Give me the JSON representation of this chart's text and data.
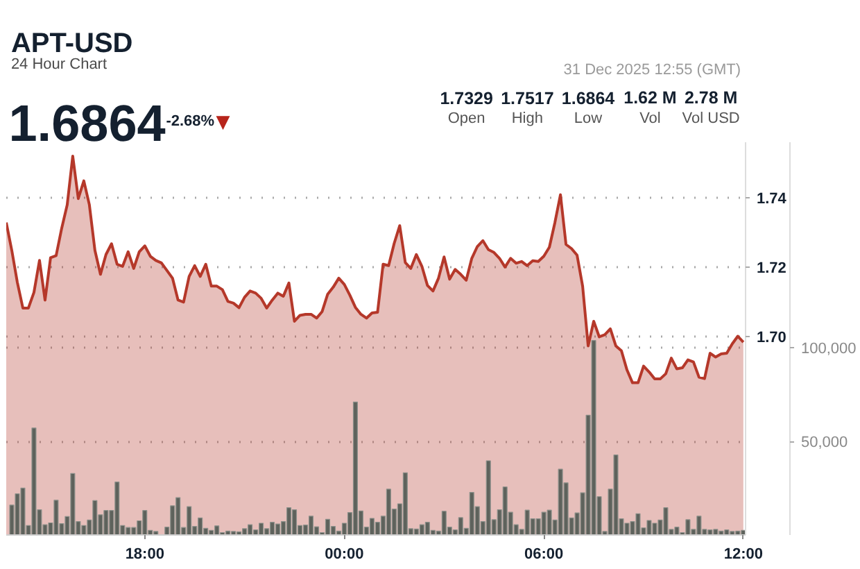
{
  "chart_data": {
    "type": "area",
    "title": "APT-USD",
    "subtitle": "24 Hour Chart",
    "annotations": [
      "1.6864",
      "-2.68%",
      "▼",
      "31 Dec 2025 12:55 (GMT)",
      "1.7329",
      "Open",
      "1.7517",
      "High",
      "1.6864",
      "Low",
      "1.62 M",
      "Vol",
      "2.78 M",
      "Vol USD"
    ],
    "x": [
      "2025-12-30T13:50",
      "2025-12-30T14:00",
      "2025-12-30T14:10",
      "2025-12-30T14:20",
      "2025-12-30T14:30",
      "2025-12-30T14:40",
      "2025-12-30T14:50",
      "2025-12-30T15:00",
      "2025-12-30T15:10",
      "2025-12-30T15:20",
      "2025-12-30T15:30",
      "2025-12-30T15:40",
      "2025-12-30T15:50",
      "2025-12-30T16:00",
      "2025-12-30T16:10",
      "2025-12-30T16:20",
      "2025-12-30T16:30",
      "2025-12-30T16:40",
      "2025-12-30T16:50",
      "2025-12-30T17:00",
      "2025-12-30T17:10",
      "2025-12-30T17:20",
      "2025-12-30T17:30",
      "2025-12-30T17:40",
      "2025-12-30T17:50",
      "2025-12-30T18:00",
      "2025-12-30T18:10",
      "2025-12-30T18:20",
      "2025-12-30T18:30",
      "2025-12-30T18:40",
      "2025-12-30T18:50",
      "2025-12-30T19:00",
      "2025-12-30T19:10",
      "2025-12-30T19:20",
      "2025-12-30T19:30",
      "2025-12-30T19:40",
      "2025-12-30T19:50",
      "2025-12-30T20:00",
      "2025-12-30T20:10",
      "2025-12-30T20:20",
      "2025-12-30T20:30",
      "2025-12-30T20:40",
      "2025-12-30T20:50",
      "2025-12-30T21:00",
      "2025-12-30T21:10",
      "2025-12-30T21:20",
      "2025-12-30T21:30",
      "2025-12-30T21:40",
      "2025-12-30T21:50",
      "2025-12-30T22:00",
      "2025-12-30T22:10",
      "2025-12-30T22:20",
      "2025-12-30T22:30",
      "2025-12-30T22:40",
      "2025-12-30T22:50",
      "2025-12-30T23:00",
      "2025-12-30T23:10",
      "2025-12-30T23:20",
      "2025-12-30T23:30",
      "2025-12-30T23:40",
      "2025-12-30T23:50",
      "2025-12-31T00:00",
      "2025-12-31T00:10",
      "2025-12-31T00:20",
      "2025-12-31T00:30",
      "2025-12-31T00:40",
      "2025-12-31T00:50",
      "2025-12-31T01:00",
      "2025-12-31T01:10",
      "2025-12-31T01:20",
      "2025-12-31T01:30",
      "2025-12-31T01:40",
      "2025-12-31T01:50",
      "2025-12-31T02:00",
      "2025-12-31T02:10",
      "2025-12-31T02:20",
      "2025-12-31T02:30",
      "2025-12-31T02:40",
      "2025-12-31T02:50",
      "2025-12-31T03:00",
      "2025-12-31T03:10",
      "2025-12-31T03:20",
      "2025-12-31T03:30",
      "2025-12-31T03:40",
      "2025-12-31T03:50",
      "2025-12-31T04:00",
      "2025-12-31T04:10",
      "2025-12-31T04:20",
      "2025-12-31T04:30",
      "2025-12-31T04:40",
      "2025-12-31T04:50",
      "2025-12-31T05:00",
      "2025-12-31T05:10",
      "2025-12-31T05:20",
      "2025-12-31T05:30",
      "2025-12-31T05:40",
      "2025-12-31T05:50",
      "2025-12-31T06:00",
      "2025-12-31T06:10",
      "2025-12-31T06:20",
      "2025-12-31T06:30",
      "2025-12-31T06:40",
      "2025-12-31T06:50",
      "2025-12-31T07:00",
      "2025-12-31T07:10",
      "2025-12-31T07:20",
      "2025-12-31T07:30",
      "2025-12-31T07:40",
      "2025-12-31T07:50",
      "2025-12-31T08:00",
      "2025-12-31T08:10",
      "2025-12-31T08:20",
      "2025-12-31T08:30",
      "2025-12-31T08:40",
      "2025-12-31T08:50",
      "2025-12-31T09:00",
      "2025-12-31T09:10",
      "2025-12-31T09:20",
      "2025-12-31T09:30",
      "2025-12-31T09:40",
      "2025-12-31T09:50",
      "2025-12-31T10:00",
      "2025-12-31T10:10",
      "2025-12-31T10:20",
      "2025-12-31T10:30",
      "2025-12-31T10:40",
      "2025-12-31T10:50",
      "2025-12-31T11:00",
      "2025-12-31T11:10",
      "2025-12-31T11:20",
      "2025-12-31T11:30",
      "2025-12-31T11:40",
      "2025-12-31T11:50",
      "2025-12-31T12:00"
    ],
    "xlim": [
      "2025-12-30T13:50",
      "2025-12-31T12:04"
    ],
    "xticks": [
      {
        "value": "2025-12-30T18:00",
        "label": "18:00"
      },
      {
        "value": "2025-12-31T00:00",
        "label": "00:00"
      },
      {
        "value": "2025-12-31T06:00",
        "label": "06:00"
      },
      {
        "value": "2025-12-31T12:00",
        "label": "12:00"
      }
    ],
    "ylim": [
      1.643,
      1.756
    ],
    "yticks": [
      {
        "value": 1.7,
        "label": "1.70"
      },
      1.72,
      1.74
    ],
    "y2lim": [
      0,
      210000
    ],
    "y2ticks": [
      {
        "value": 50000,
        "label": "50,000"
      },
      {
        "value": 100000,
        "label": "100,000"
      }
    ],
    "grid": "y",
    "series": [
      {
        "color": "#b5382a",
        "values": [
          1.7329,
          1.7249,
          1.7157,
          1.7083,
          1.7083,
          1.7128,
          1.722,
          1.7106,
          1.7228,
          1.7234,
          1.7312,
          1.738,
          1.752,
          1.7398,
          1.7449,
          1.738,
          1.7249,
          1.718,
          1.7237,
          1.7268,
          1.7209,
          1.7203,
          1.7245,
          1.7197,
          1.7245,
          1.7262,
          1.7232,
          1.722,
          1.7213,
          1.7191,
          1.7169,
          1.7106,
          1.71,
          1.7174,
          1.7205,
          1.7174,
          1.7209,
          1.7146,
          1.7146,
          1.7136,
          1.7102,
          1.7097,
          1.7084,
          1.7114,
          1.7132,
          1.7126,
          1.7111,
          1.7083,
          1.7106,
          1.7126,
          1.7117,
          1.7155,
          1.7045,
          1.7062,
          1.7065,
          1.7065,
          1.7054,
          1.7073,
          1.7123,
          1.7143,
          1.7169,
          1.7151,
          1.712,
          1.7085,
          1.7065,
          1.7054,
          1.7069,
          1.7071,
          1.7209,
          1.7205,
          1.7269,
          1.732,
          1.7214,
          1.7197,
          1.7237,
          1.7203,
          1.7148,
          1.7132,
          1.7169,
          1.723,
          1.7166,
          1.7194,
          1.718,
          1.7163,
          1.7226,
          1.726,
          1.7277,
          1.7251,
          1.7243,
          1.7226,
          1.7201,
          1.7226,
          1.7212,
          1.7217,
          1.7205,
          1.7219,
          1.7217,
          1.7232,
          1.7258,
          1.7329,
          1.7409,
          1.7266,
          1.7254,
          1.7235,
          1.7146,
          1.6974,
          1.7045,
          1.7,
          1.7006,
          1.7023,
          1.6974,
          1.696,
          1.6905,
          1.6868,
          1.6868,
          1.6916,
          1.6899,
          1.6879,
          1.6879,
          1.6894,
          1.6939,
          1.6908,
          1.6911,
          1.6934,
          1.6928,
          1.6884,
          1.688,
          1.6953,
          1.6942,
          1.6951,
          1.6953,
          1.698,
          1.7002,
          1.6985
        ]
      },
      {
        "type": "bar",
        "axis": "y2",
        "color": "#5e625c",
        "values": [
          null,
          16000,
          22000,
          25100,
          5100,
          57200,
          13500,
          5500,
          6500,
          18600,
          6100,
          9900,
          32900,
          7200,
          5100,
          8000,
          18400,
          10800,
          13100,
          13100,
          28300,
          5100,
          4000,
          4000,
          7600,
          13100,
          2500,
          1900,
          null,
          4200,
          15600,
          20000,
          4000,
          15200,
          4600,
          9100,
          3600,
          2500,
          4900,
          1300,
          2100,
          1900,
          1700,
          3400,
          5500,
          2700,
          6300,
          3400,
          6800,
          5900,
          7200,
          14600,
          13500,
          5100,
          5300,
          10100,
          4400,
          1300,
          8400,
          4600,
          2100,
          6300,
          12000,
          71100,
          12900,
          4200,
          8900,
          6800,
          10100,
          24500,
          13900,
          16700,
          33300,
          3400,
          3200,
          5500,
          6800,
          2500,
          2100,
          12700,
          4200,
          2700,
          9300,
          3600,
          22800,
          15200,
          7200,
          39700,
          8200,
          13500,
          25700,
          12200,
          5500,
          3000,
          13300,
          8700,
          8700,
          12200,
          13300,
          8000,
          35200,
          27900,
          9100,
          11800,
          22600,
          64100,
          104000,
          20500,
          1900,
          24500,
          42800,
          8700,
          6300,
          7200,
          11400,
          3800,
          7800,
          6300,
          8000,
          14600,
          3000,
          4200,
          1300,
          8200,
          3000,
          10100,
          3000,
          2700,
          3000,
          2100,
          2700,
          1900,
          2100,
          2500
        ]
      }
    ]
  }
}
